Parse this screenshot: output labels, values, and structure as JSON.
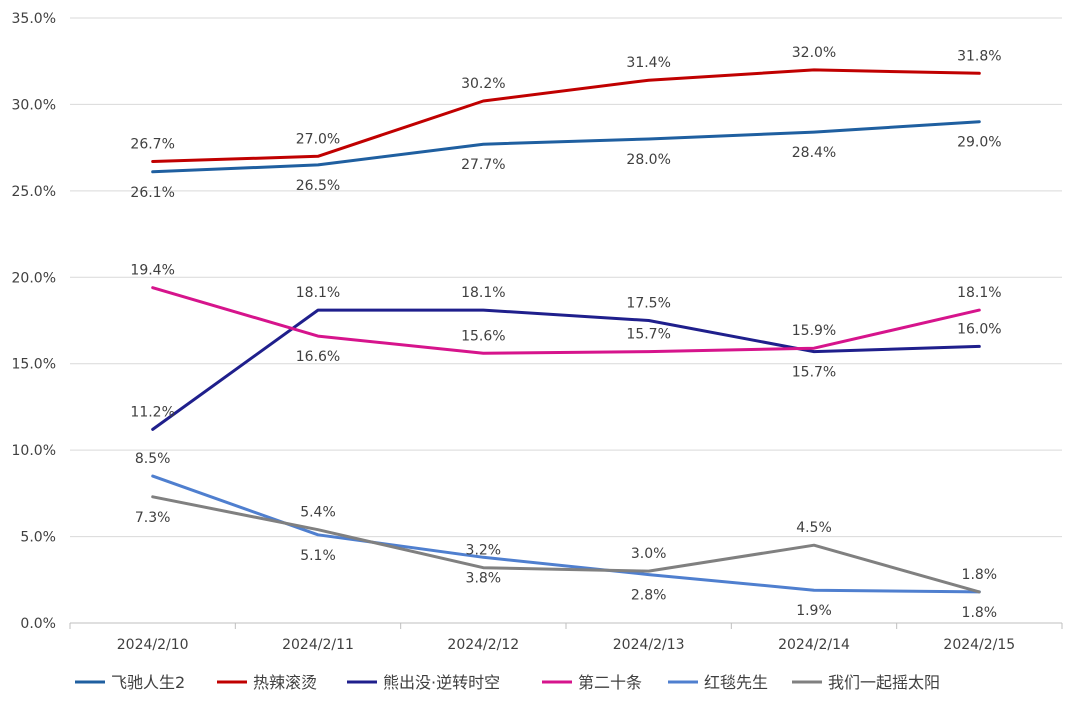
{
  "chart_data": {
    "type": "line",
    "title": "",
    "xlabel": "",
    "ylabel": "",
    "ylim": [
      0,
      35
    ],
    "y_ticks": [
      "0.0%",
      "5.0%",
      "10.0%",
      "15.0%",
      "20.0%",
      "25.0%",
      "30.0%",
      "35.0%"
    ],
    "grid": "horizontal",
    "legend_position": "bottom",
    "categories": [
      "2024/2/10",
      "2024/2/11",
      "2024/2/12",
      "2024/2/13",
      "2024/2/14",
      "2024/2/15"
    ],
    "series": [
      {
        "name": "飞驰人生2",
        "color": "#1f5fa0",
        "values": [
          26.1,
          26.5,
          27.7,
          28.0,
          28.4,
          29.0
        ],
        "labels": [
          "26.1%",
          "26.5%",
          "27.7%",
          "28.0%",
          "28.4%",
          "29.0%"
        ],
        "label_side": [
          "below",
          "below",
          "below",
          "below",
          "below",
          "below"
        ]
      },
      {
        "name": "热辣滚烫",
        "color": "#c00000",
        "values": [
          26.7,
          27.0,
          30.2,
          31.4,
          32.0,
          31.8
        ],
        "labels": [
          "26.7%",
          "27.0%",
          "30.2%",
          "31.4%",
          "32.0%",
          "31.8%"
        ],
        "label_side": [
          "above",
          "above",
          "above",
          "above",
          "above",
          "above"
        ]
      },
      {
        "name": "熊出没·逆转时空",
        "color": "#1f1f8c",
        "values": [
          11.2,
          18.1,
          18.1,
          17.5,
          15.7,
          16.0
        ],
        "labels": [
          "11.2%",
          "18.1%",
          "18.1%",
          "17.5%",
          "15.7%",
          "16.0%"
        ],
        "label_side": [
          "above",
          "above",
          "above",
          "above",
          "below",
          "above"
        ]
      },
      {
        "name": "第二十条",
        "color": "#d6148c",
        "values": [
          19.4,
          16.6,
          15.6,
          15.7,
          15.9,
          18.1
        ],
        "labels": [
          "19.4%",
          "16.6%",
          "15.6%",
          "15.7%",
          "15.9%",
          "18.1%"
        ],
        "label_side": [
          "above",
          "below",
          "above",
          "above",
          "above",
          "above"
        ]
      },
      {
        "name": "红毯先生",
        "color": "#4f7fcf",
        "values": [
          8.5,
          5.1,
          3.8,
          2.8,
          1.9,
          1.8
        ],
        "labels": [
          "8.5%",
          "5.1%",
          "3.8%",
          "2.8%",
          "1.9%",
          "1.8%"
        ],
        "label_side": [
          "above",
          "below",
          "below",
          "below",
          "below",
          "below"
        ]
      },
      {
        "name": "我们一起摇太阳",
        "color": "#808080",
        "values": [
          7.3,
          5.4,
          3.2,
          3.0,
          4.5,
          1.8
        ],
        "labels": [
          "7.3%",
          "5.4%",
          "3.2%",
          "3.0%",
          "4.5%",
          "1.8%"
        ],
        "label_side": [
          "below",
          "above",
          "above",
          "above",
          "above",
          "above"
        ]
      }
    ]
  }
}
